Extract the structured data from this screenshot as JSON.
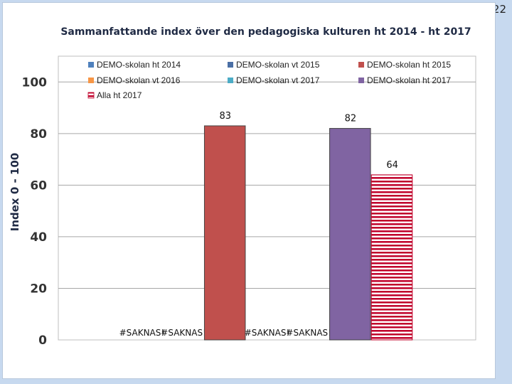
{
  "slide": {
    "number": "22"
  },
  "chart_data": {
    "type": "bar",
    "title": "Sammanfattande index över den pedagogiska kulturen ht 2014  - ht 2017",
    "ylabel": "Index 0 - 100",
    "xlabel": "",
    "ylim": [
      0,
      110
    ],
    "yticks": [
      0,
      20,
      40,
      60,
      80,
      100
    ],
    "grid": true,
    "legend_position": "top",
    "series": [
      {
        "name": "DEMO-skolan ht 2014",
        "color": "#4f81bd",
        "value": null,
        "label": "#SAKNAS!"
      },
      {
        "name": "DEMO-skolan vt 2015",
        "color": "#4a6fa5",
        "value": null,
        "label": "#SAKNAS!"
      },
      {
        "name": "DEMO-skolan ht 2015",
        "color": "#c0504d",
        "value": 83,
        "label": "83"
      },
      {
        "name": "DEMO-skolan vt 2016",
        "color": "#f79646",
        "value": null,
        "label": "#SAKNAS!"
      },
      {
        "name": "DEMO-skolan vt 2017",
        "color": "#4bacc6",
        "value": null,
        "label": "#SAKNAS!"
      },
      {
        "name": "DEMO-skolan ht 2017",
        "color": "#8064a2",
        "value": 82,
        "label": "82"
      },
      {
        "name": "Alla ht 2017",
        "color": "#c0002a",
        "pattern": "horizontal-stripes",
        "value": 64,
        "label": "64"
      }
    ]
  }
}
